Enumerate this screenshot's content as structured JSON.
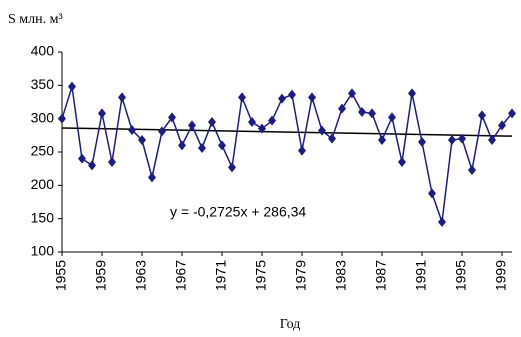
{
  "chart_data": {
    "type": "line",
    "y_label": "S млн. м³",
    "x_label": "Год",
    "x": [
      1955,
      1956,
      1957,
      1958,
      1959,
      1960,
      1961,
      1962,
      1963,
      1964,
      1965,
      1966,
      1967,
      1968,
      1969,
      1970,
      1971,
      1972,
      1973,
      1974,
      1975,
      1976,
      1977,
      1978,
      1979,
      1980,
      1981,
      1982,
      1983,
      1984,
      1985,
      1986,
      1987,
      1988,
      1989,
      1990,
      1991,
      1992,
      1993,
      1994,
      1995,
      1996,
      1997,
      1998,
      1999,
      2000
    ],
    "series": [
      {
        "color": "#1c1c86",
        "values": [
          300,
          348,
          240,
          230,
          308,
          235,
          332,
          283,
          268,
          212,
          281,
          302,
          260,
          290,
          256,
          295,
          260,
          227,
          332,
          295,
          285,
          297,
          330,
          336,
          252,
          332,
          282,
          270,
          315,
          338,
          310,
          308,
          268,
          302,
          235,
          338,
          265,
          188,
          145,
          268,
          270,
          223,
          305,
          268,
          290,
          308
        ]
      }
    ],
    "trend": {
      "slope": -0.2725,
      "intercept": 286.34,
      "label": "y = -0,2725x + 286,34",
      "color": "#000000"
    },
    "xlim": [
      1955,
      2000
    ],
    "xticks": [
      1955,
      1959,
      1963,
      1967,
      1971,
      1975,
      1979,
      1983,
      1987,
      1991,
      1995,
      1999
    ],
    "ylim": [
      100,
      400
    ],
    "yticks": [
      100,
      150,
      200,
      250,
      300,
      350,
      400
    ],
    "grid": false
  }
}
